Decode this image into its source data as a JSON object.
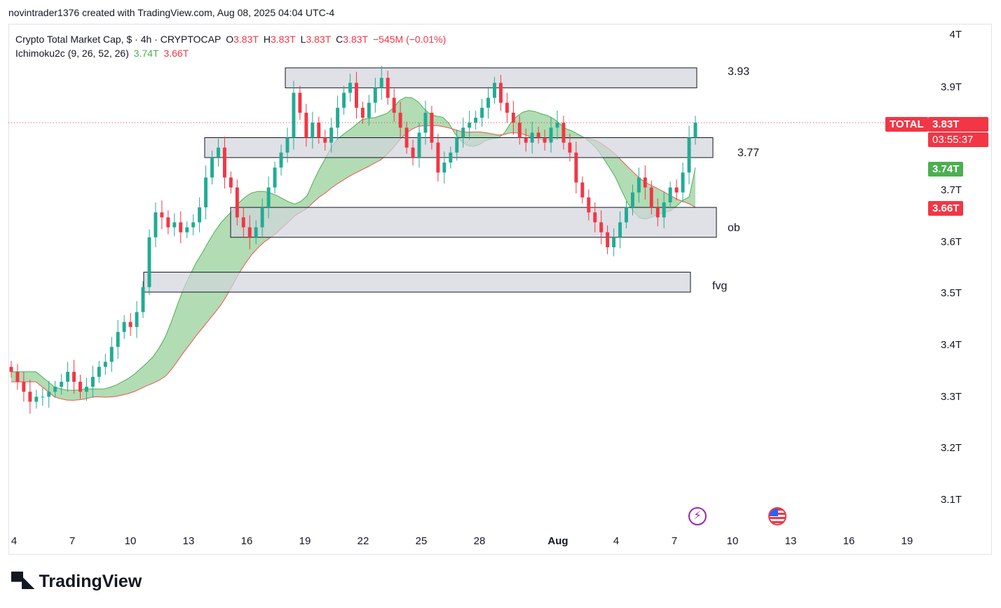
{
  "header": {
    "author_line": "novintrader1376 created with TradingView.com, Aug 08, 2025 04:04 UTC-4"
  },
  "legend": {
    "symbol": "Crypto Total Market Cap, $ · 4h · CRYPTOCAP",
    "o_label": "O",
    "o_value": "3.83T",
    "h_label": "H",
    "h_value": "3.83T",
    "l_label": "L",
    "l_value": "3.83T",
    "c_label": "C",
    "c_value": "3.83T",
    "change": "−545M (−0.01%)",
    "indicator": "Ichimoku2c (9, 26, 52, 26)",
    "ind_value1": "3.74T",
    "ind_value2": "3.66T"
  },
  "annotations": {
    "zone1": "3.93",
    "zone2": "3.77",
    "zone3": "ob",
    "zone4": "fvg"
  },
  "price_axis": {
    "ticks": [
      "4T",
      "3.9T",
      "3.7T",
      "3.6T",
      "3.5T",
      "3.4T",
      "3.3T",
      "3.2T",
      "3.1T"
    ],
    "symbol_badge": "TOTAL",
    "last_price": "3.83T",
    "countdown": "03:55:37",
    "cloud_a": "3.74T",
    "cloud_b": "3.66T"
  },
  "time_axis": {
    "ticks": [
      "4",
      "7",
      "10",
      "13",
      "16",
      "19",
      "22",
      "25",
      "28",
      "Aug",
      "4",
      "7",
      "10",
      "13",
      "16",
      "19"
    ]
  },
  "branding": {
    "logo_text": "TradingView"
  },
  "colors": {
    "up": "#22ab94",
    "down": "#f23645",
    "cloud": "#a5d6a7",
    "zone": "#d1d4dc",
    "badge_green": "#4caf50"
  },
  "chart_data": {
    "type": "candlestick",
    "title": "Crypto Total Market Cap, $ · 4h · CRYPTOCAP",
    "ylim": [
      3.05,
      4.02
    ],
    "y_unit": "T",
    "last_price": 3.83,
    "zones": [
      {
        "label": "3.93",
        "from": 3.9,
        "to": 3.94
      },
      {
        "label": "3.77",
        "from": 3.76,
        "to": 3.8
      },
      {
        "label": "ob",
        "from": 3.6,
        "to": 3.66
      },
      {
        "label": "fvg",
        "from": 3.49,
        "to": 3.53
      }
    ],
    "ichimoku_cloud": {
      "span_a_last": 3.74,
      "span_b_last": 3.66
    },
    "close_path": [
      3.33,
      3.31,
      3.29,
      3.27,
      3.28,
      3.28,
      3.29,
      3.3,
      3.31,
      3.33,
      3.31,
      3.29,
      3.3,
      3.32,
      3.34,
      3.35,
      3.38,
      3.41,
      3.43,
      3.42,
      3.45,
      3.5,
      3.6,
      3.65,
      3.64,
      3.62,
      3.63,
      3.61,
      3.62,
      3.63,
      3.66,
      3.72,
      3.76,
      3.78,
      3.72,
      3.7,
      3.64,
      3.62,
      3.6,
      3.62,
      3.66,
      3.7,
      3.74,
      3.77,
      3.8,
      3.89,
      3.85,
      3.8,
      3.83,
      3.8,
      3.79,
      3.82,
      3.86,
      3.89,
      3.91,
      3.86,
      3.84,
      3.87,
      3.9,
      3.92,
      3.88,
      3.85,
      3.82,
      3.78,
      3.76,
      3.81,
      3.85,
      3.79,
      3.73,
      3.75,
      3.77,
      3.8,
      3.82,
      3.83,
      3.84,
      3.86,
      3.88,
      3.91,
      3.87,
      3.85,
      3.83,
      3.8,
      3.79,
      3.81,
      3.8,
      3.79,
      3.82,
      3.83,
      3.79,
      3.77,
      3.71,
      3.68,
      3.65,
      3.63,
      3.61,
      3.58,
      3.6,
      3.63,
      3.66,
      3.69,
      3.72,
      3.7,
      3.66,
      3.64,
      3.67,
      3.7,
      3.69,
      3.73,
      3.8,
      3.83
    ]
  }
}
